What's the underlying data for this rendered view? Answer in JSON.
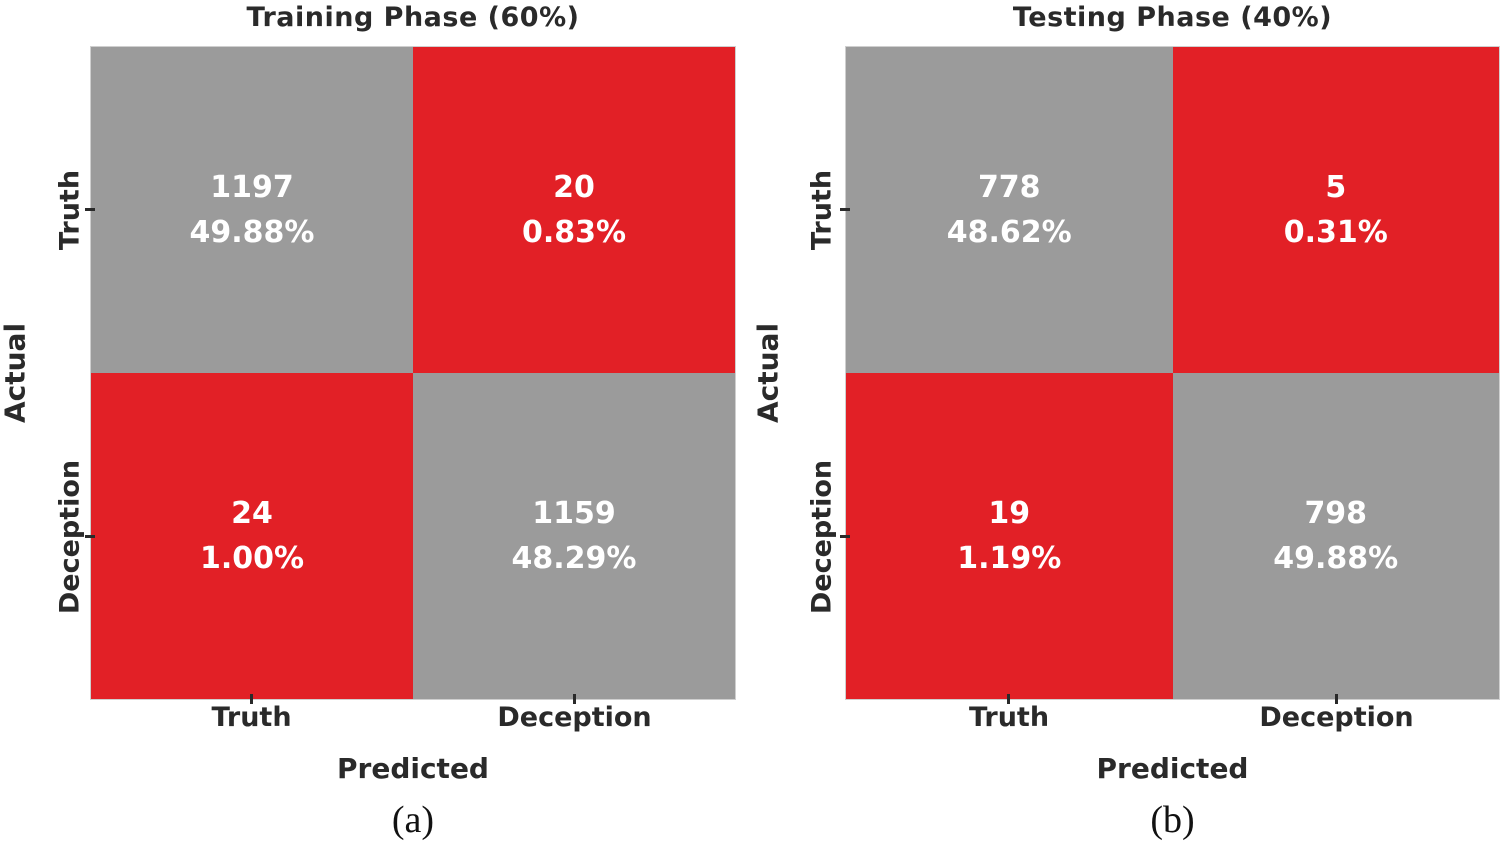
{
  "colors": {
    "high": "#9b9b9b",
    "low": "#e22026",
    "cell_text": "#ffffff",
    "label_text": "#2a2a2a",
    "background": "#ffffff",
    "plot_border": "#cfcfcf",
    "tick": "#2a2a2a"
  },
  "panels": [
    {
      "title": "Training Phase (60%)",
      "xlabel": "Predicted",
      "ylabel": "Actual",
      "x_ticks": [
        "Truth",
        "Deception"
      ],
      "y_ticks": [
        "Truth",
        "Deception"
      ],
      "caption": "(a)",
      "cells": [
        {
          "row": "Truth",
          "col": "Truth",
          "count": "1197",
          "percent": "49.88%",
          "tone": "high"
        },
        {
          "row": "Truth",
          "col": "Deception",
          "count": "20",
          "percent": "0.83%",
          "tone": "low"
        },
        {
          "row": "Deception",
          "col": "Truth",
          "count": "24",
          "percent": "1.00%",
          "tone": "low"
        },
        {
          "row": "Deception",
          "col": "Deception",
          "count": "1159",
          "percent": "48.29%",
          "tone": "high"
        }
      ]
    },
    {
      "title": "Testing Phase (40%)",
      "xlabel": "Predicted",
      "ylabel": "Actual",
      "x_ticks": [
        "Truth",
        "Deception"
      ],
      "y_ticks": [
        "Truth",
        "Deception"
      ],
      "caption": "(b)",
      "cells": [
        {
          "row": "Truth",
          "col": "Truth",
          "count": "778",
          "percent": "48.62%",
          "tone": "high"
        },
        {
          "row": "Truth",
          "col": "Deception",
          "count": "5",
          "percent": "0.31%",
          "tone": "low"
        },
        {
          "row": "Deception",
          "col": "Truth",
          "count": "19",
          "percent": "1.19%",
          "tone": "low"
        },
        {
          "row": "Deception",
          "col": "Deception",
          "count": "798",
          "percent": "49.88%",
          "tone": "high"
        }
      ]
    }
  ],
  "chart_data": [
    {
      "type": "heatmap",
      "title": "Training Phase (60%)",
      "xlabel": "Predicted",
      "ylabel": "Actual",
      "x_categories": [
        "Truth",
        "Deception"
      ],
      "y_categories": [
        "Truth",
        "Deception"
      ],
      "values": [
        [
          1197,
          20
        ],
        [
          24,
          1159
        ]
      ],
      "percentages": [
        [
          49.88,
          0.83
        ],
        [
          1.0,
          48.29
        ]
      ],
      "caption": "(a)",
      "legend": "none",
      "color_rule": "diagonal (correct) cells gray #9b9b9b, off-diagonal (error) cells red #e22026, white bold cell text"
    },
    {
      "type": "heatmap",
      "title": "Testing Phase (40%)",
      "xlabel": "Predicted",
      "ylabel": "Actual",
      "x_categories": [
        "Truth",
        "Deception"
      ],
      "y_categories": [
        "Truth",
        "Deception"
      ],
      "values": [
        [
          778,
          5
        ],
        [
          19,
          798
        ]
      ],
      "percentages": [
        [
          48.62,
          0.31
        ],
        [
          1.19,
          49.88
        ]
      ],
      "caption": "(b)",
      "legend": "none",
      "color_rule": "diagonal (correct) cells gray #9b9b9b, off-diagonal (error) cells red #e22026, white bold cell text"
    }
  ]
}
